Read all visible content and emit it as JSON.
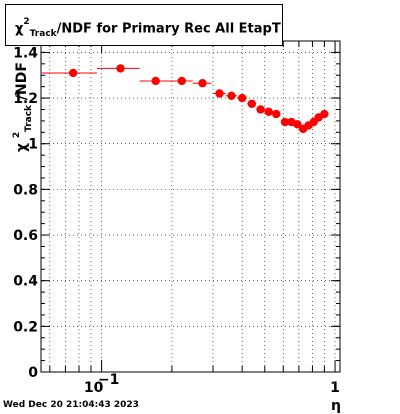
{
  "chart_data": {
    "type": "scatter",
    "title_parts": {
      "chi": "χ",
      "sup": "2",
      "sub": "Track",
      "rest": "/NDF for Primary Rec All EtapT"
    },
    "xlabel": "η",
    "ylabel_parts": {
      "chi": "χ",
      "sup": "2",
      "sub": "Track",
      "rest": "/NDF"
    },
    "xscale": "log",
    "xlim": [
      0.055,
      1.05
    ],
    "ylim": [
      0,
      1.45
    ],
    "yticks": [
      0,
      0.2,
      0.4,
      0.6,
      0.8,
      1,
      1.2,
      1.4
    ],
    "ytick_labels": [
      "0",
      "0.2",
      "0.4",
      "0.6",
      "0.8",
      "1",
      "1.2",
      "1.4"
    ],
    "xtick_labels": {
      "major_1": "10",
      "major_1_exp": "−1",
      "major_2": "1"
    },
    "grid": true,
    "marker_color": "#ff0000",
    "points": [
      {
        "x": 0.0755,
        "y": 1.31,
        "xerr": [
          0.0555,
          0.0955
        ]
      },
      {
        "x": 0.1205,
        "y": 1.33,
        "xerr": [
          0.0955,
          0.1455
        ]
      },
      {
        "x": 0.1705,
        "y": 1.275,
        "xerr": [
          0.1455,
          0.1955
        ]
      },
      {
        "x": 0.2205,
        "y": 1.275,
        "xerr": [
          0.1955,
          0.2455
        ]
      },
      {
        "x": 0.2705,
        "y": 1.265,
        "xerr": [
          0.2455,
          0.2955
        ]
      },
      {
        "x": 0.32,
        "y": 1.22,
        "xerr": [
          0.3,
          0.34
        ]
      },
      {
        "x": 0.36,
        "y": 1.21,
        "xerr": [
          0.34,
          0.38
        ]
      },
      {
        "x": 0.4,
        "y": 1.2,
        "xerr": [
          0.38,
          0.42
        ]
      },
      {
        "x": 0.44,
        "y": 1.175,
        "xerr": [
          0.42,
          0.46
        ]
      },
      {
        "x": 0.48,
        "y": 1.15,
        "xerr": [
          0.46,
          0.5
        ]
      },
      {
        "x": 0.52,
        "y": 1.14,
        "xerr": [
          0.5,
          0.54
        ]
      },
      {
        "x": 0.56,
        "y": 1.13,
        "xerr": [
          0.54,
          0.58
        ]
      },
      {
        "x": 0.61,
        "y": 1.095,
        "xerr": [
          0.59,
          0.63
        ]
      },
      {
        "x": 0.65,
        "y": 1.095,
        "xerr": [
          0.63,
          0.67
        ]
      },
      {
        "x": 0.69,
        "y": 1.085,
        "xerr": [
          0.67,
          0.71
        ]
      },
      {
        "x": 0.73,
        "y": 1.065,
        "xerr": [
          0.71,
          0.75
        ]
      },
      {
        "x": 0.77,
        "y": 1.08,
        "xerr": [
          0.75,
          0.79
        ]
      },
      {
        "x": 0.81,
        "y": 1.095,
        "xerr": [
          0.79,
          0.83
        ]
      },
      {
        "x": 0.85,
        "y": 1.115,
        "xerr": [
          0.83,
          0.87
        ]
      },
      {
        "x": 0.9,
        "y": 1.13,
        "xerr": [
          0.88,
          0.92
        ]
      }
    ]
  },
  "footer": {
    "timestamp": "Wed Dec 20 21:04:43 2023"
  }
}
